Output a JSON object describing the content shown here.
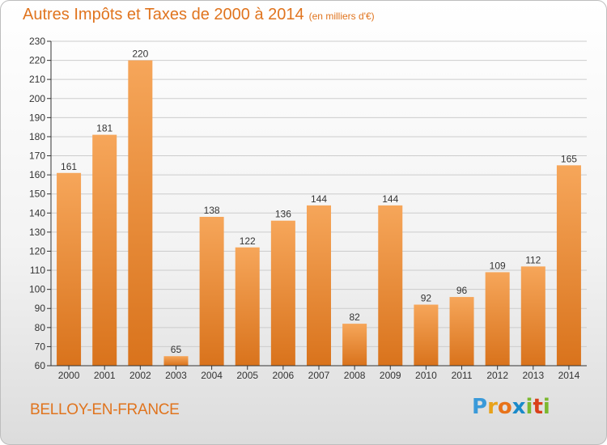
{
  "title": "Autres Impôts et Taxes de 2000 à 2014",
  "subtitle": "(en milliers d'€)",
  "city": "BELLOY-EN-FRANCE",
  "logo": {
    "letters": [
      "P",
      "r",
      "o",
      "x",
      "i",
      "t",
      "i"
    ],
    "colors": [
      "#3a9ad9",
      "#e8a21a",
      "#e8731a",
      "#1a8ac9",
      "#7cb82f",
      "#d9401a",
      "#7cb82f"
    ]
  },
  "colors": {
    "bar_light": "#f6a65a",
    "bar_dark": "#d9731c",
    "title": "#e0741e",
    "grid": "#cccccc"
  },
  "chart_data": {
    "type": "bar",
    "categories": [
      "2000",
      "2001",
      "2002",
      "2003",
      "2004",
      "2005",
      "2006",
      "2007",
      "2008",
      "2009",
      "2010",
      "2011",
      "2012",
      "2013",
      "2014"
    ],
    "values": [
      161,
      181,
      220,
      65,
      138,
      122,
      136,
      144,
      82,
      144,
      92,
      96,
      109,
      112,
      165
    ],
    "ylim": [
      60,
      230
    ],
    "yticks": [
      60,
      70,
      80,
      90,
      100,
      110,
      120,
      130,
      140,
      150,
      160,
      170,
      180,
      190,
      200,
      210,
      220,
      230
    ],
    "grid": true
  }
}
